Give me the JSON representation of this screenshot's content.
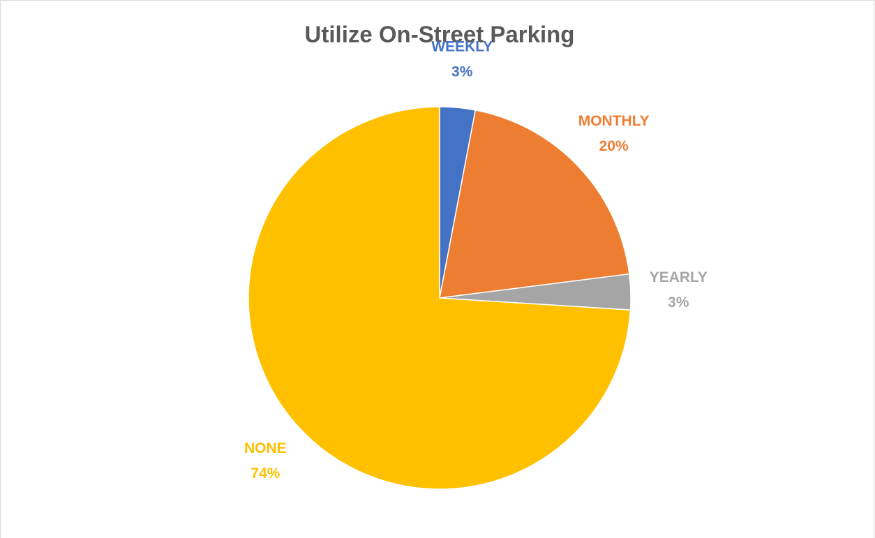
{
  "chart_data": {
    "type": "pie",
    "title": "Utilize On-Street Parking",
    "categories": [
      "WEEKLY",
      "MONTHLY",
      "YEARLY",
      "NONE"
    ],
    "values": [
      3,
      20,
      3,
      74
    ],
    "value_labels": [
      "3%",
      "20%",
      "3%",
      "74%"
    ],
    "colors": [
      "#4472c4",
      "#ed7d31",
      "#a5a5a5",
      "#ffc000"
    ]
  }
}
